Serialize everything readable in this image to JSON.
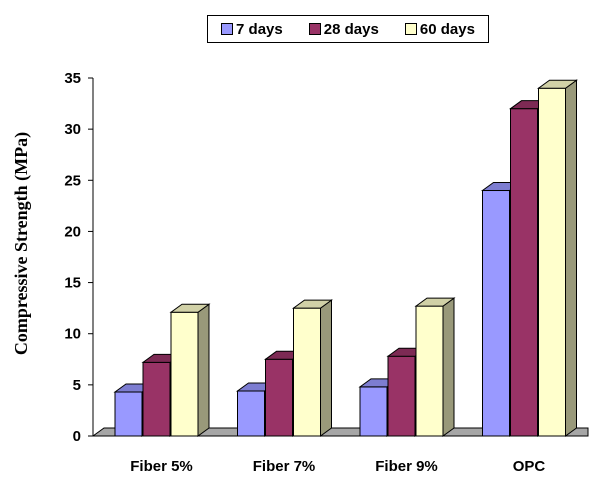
{
  "chart_data": {
    "type": "bar",
    "title": "",
    "xlabel": "",
    "ylabel": "Compressive Strength (MPa)",
    "categories": [
      "Fiber 5%",
      "Fiber 7%",
      "Fiber 9%",
      "OPC"
    ],
    "series": [
      {
        "name": "7 days",
        "color": "#9999ff",
        "values": [
          4.3,
          4.4,
          4.8,
          24.0
        ]
      },
      {
        "name": "28 days",
        "color": "#993366",
        "values": [
          7.2,
          7.5,
          7.8,
          32.0
        ]
      },
      {
        "name": "60 days",
        "color": "#ffffcc",
        "values": [
          12.1,
          12.5,
          12.7,
          34.0
        ]
      }
    ],
    "ylim": [
      0,
      35
    ],
    "yticks": [
      0,
      5,
      10,
      15,
      20,
      25,
      30,
      35
    ],
    "grid": false,
    "legend_position": "top"
  }
}
